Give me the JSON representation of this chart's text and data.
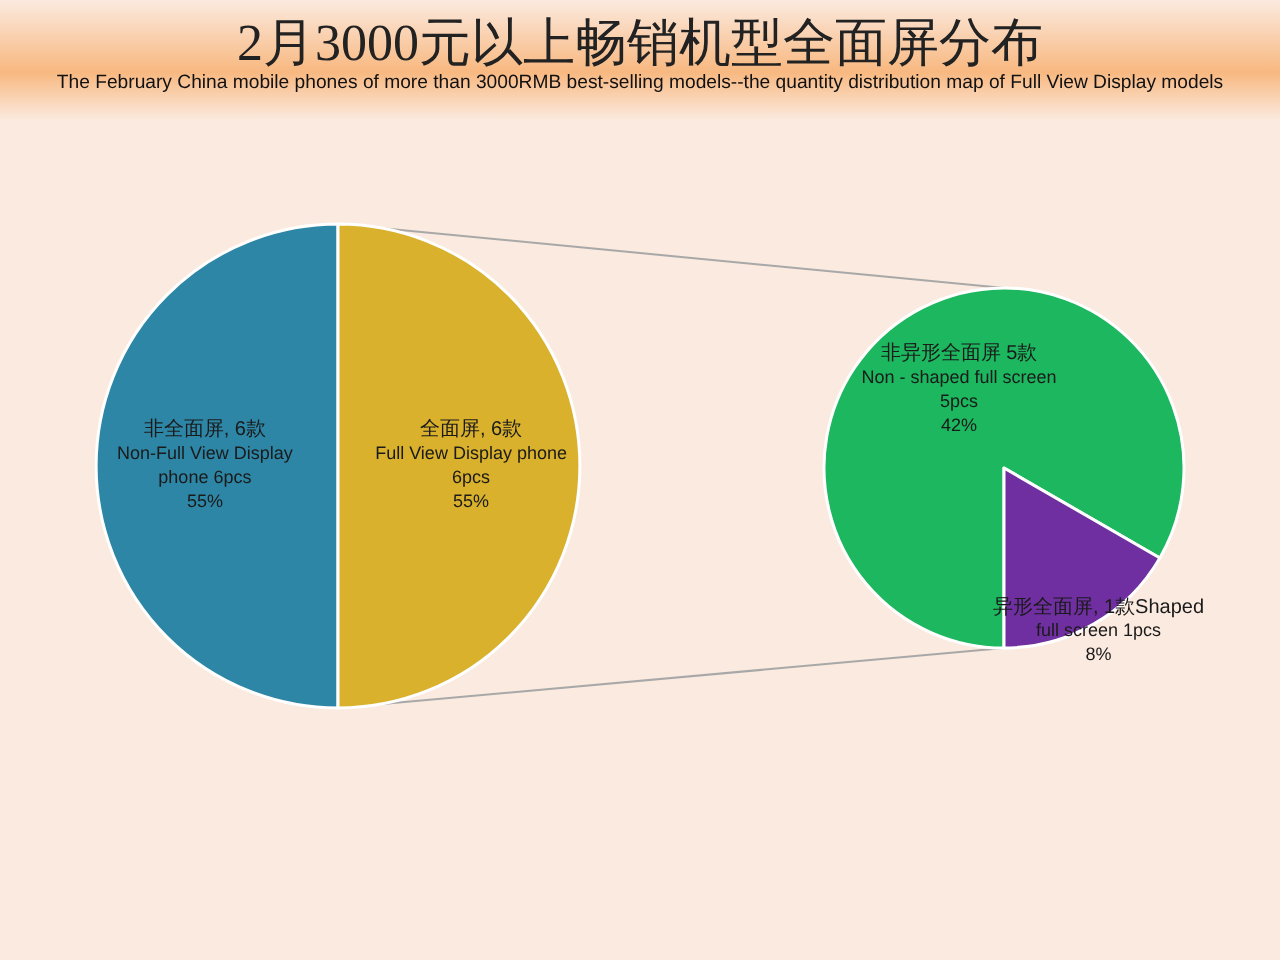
{
  "chart_data": [
    {
      "type": "pie",
      "title": "2月3000元以上畅销机型全面屏分布",
      "subtitle": "The February China mobile phones of more than 3000RMB best-selling  models--the quantity distribution map of  Full View Display models",
      "categories": [
        "非全面屏, 6款\nNon-Full View Display\nphone 6pcs\n55%",
        "全面屏, 6款\nFull View Display phone\n6pcs\n55%"
      ],
      "values": [
        6,
        6
      ],
      "colors": [
        "#2e86a6",
        "#d9b12c"
      ]
    },
    {
      "type": "pie",
      "categories": [
        "非异形全面屏 5款\nNon - shaped full screen\n5pcs\n42%",
        "异形全面屏, 1款Shaped\nfull screen  1pcs\n8%"
      ],
      "values": [
        5,
        1
      ],
      "colors": [
        "#1cb75e",
        "#6f2fa0"
      ]
    }
  ]
}
